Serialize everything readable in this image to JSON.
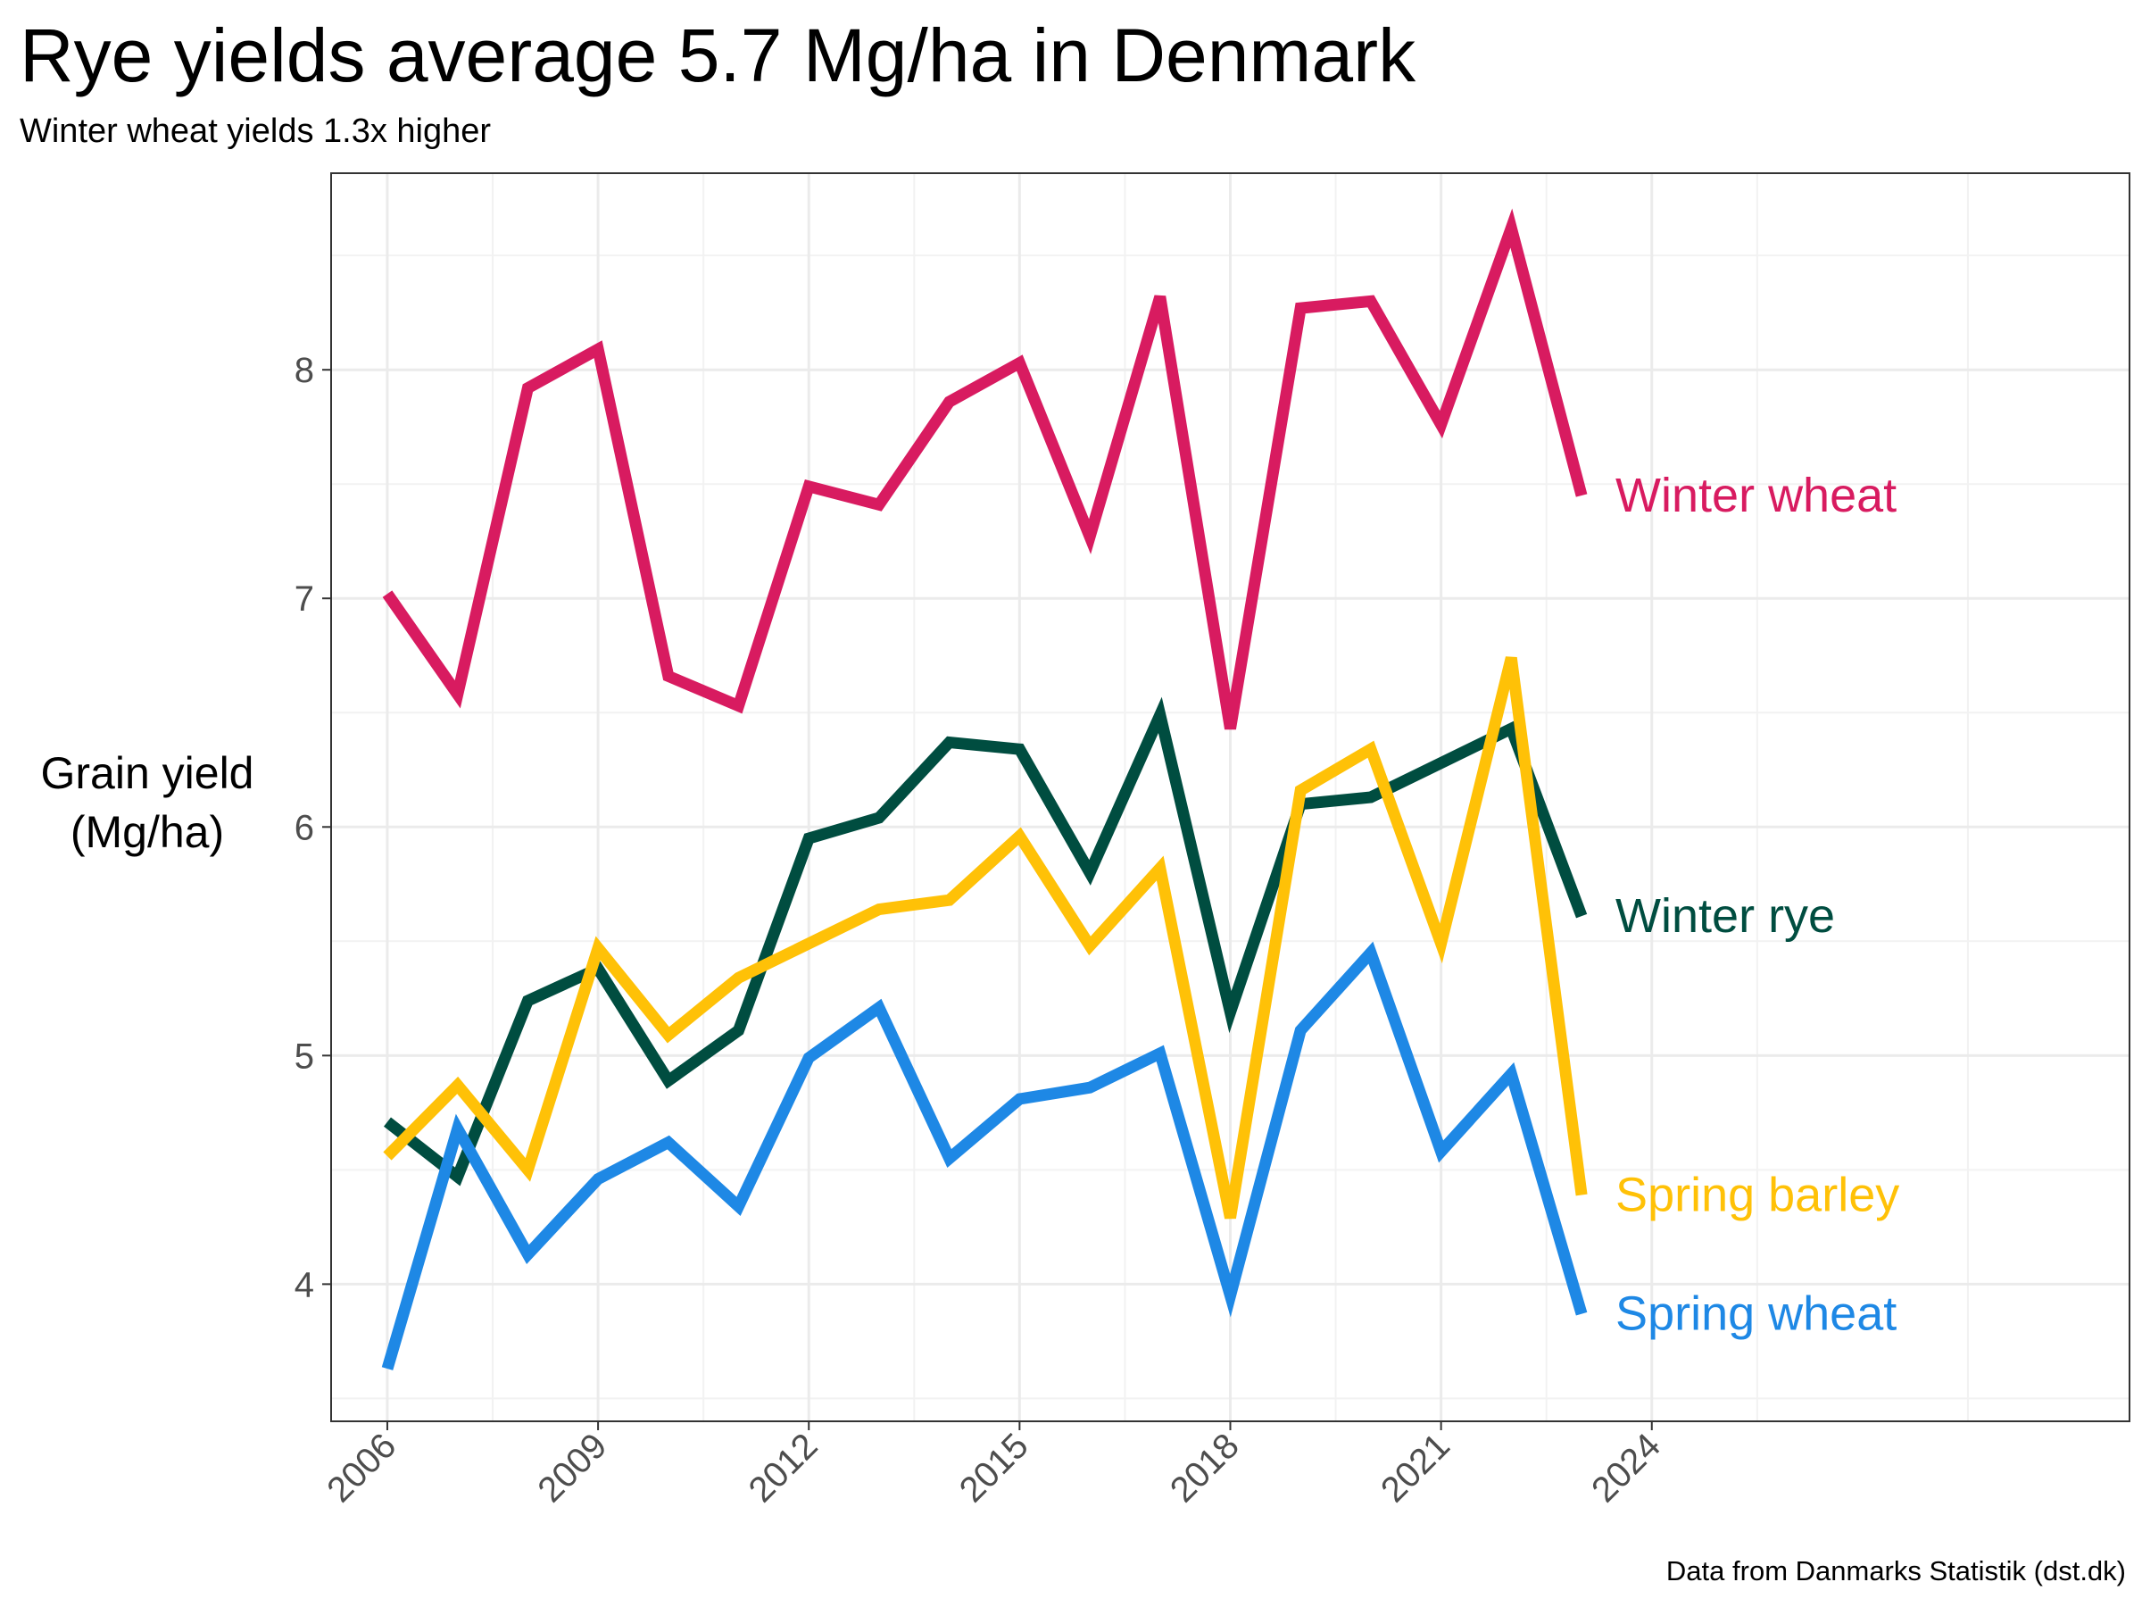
{
  "title": "Rye yields average 5.7 Mg/ha in Denmark",
  "subtitle": "Winter wheat yields 1.3x higher",
  "caption": "Data from Danmarks Statistik (dst.dk)",
  "chart_data": {
    "type": "line",
    "xlabel": "",
    "ylabel": "Grain yield\n(Mg/ha)",
    "x": [
      2006,
      2007,
      2008,
      2009,
      2010,
      2011,
      2012,
      2013,
      2014,
      2015,
      2016,
      2017,
      2018,
      2019,
      2020,
      2021,
      2022,
      2023
    ],
    "xlim": [
      2005.2,
      2030.8
    ],
    "ylim": [
      3.4,
      8.86
    ],
    "x_ticks": [
      2006,
      2009,
      2012,
      2015,
      2018,
      2021,
      2024
    ],
    "y_ticks": [
      4,
      5,
      6,
      7,
      8
    ],
    "grid": true,
    "legend": "direct labels at line ends",
    "series": [
      {
        "name": "Winter wheat",
        "color": "#D81B60",
        "values": [
          7.02,
          6.58,
          7.92,
          8.09,
          6.66,
          6.53,
          7.49,
          7.41,
          7.86,
          8.03,
          7.27,
          8.32,
          6.43,
          8.27,
          8.3,
          7.76,
          8.62,
          7.45
        ]
      },
      {
        "name": "Winter rye",
        "color": "#004D40",
        "values": [
          4.71,
          4.47,
          5.24,
          5.38,
          4.89,
          5.11,
          5.95,
          6.04,
          6.37,
          6.34,
          5.8,
          6.49,
          5.19,
          6.1,
          6.13,
          6.28,
          6.43,
          5.61
        ]
      },
      {
        "name": "Spring barley",
        "color": "#FFC107",
        "values": [
          4.56,
          4.87,
          4.5,
          5.47,
          5.09,
          5.34,
          5.49,
          5.64,
          5.68,
          5.96,
          5.48,
          5.82,
          4.29,
          6.16,
          6.34,
          5.49,
          6.74,
          4.39
        ]
      },
      {
        "name": "Spring wheat",
        "color": "#1E88E5",
        "values": [
          3.63,
          4.68,
          4.13,
          4.46,
          4.62,
          4.34,
          4.99,
          5.21,
          4.55,
          4.81,
          4.86,
          5.01,
          3.95,
          5.11,
          5.45,
          4.58,
          4.92,
          3.87
        ]
      }
    ]
  }
}
